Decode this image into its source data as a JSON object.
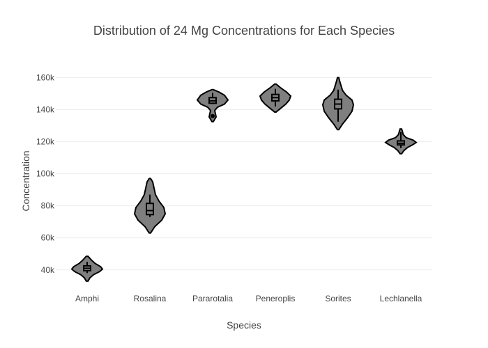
{
  "chart_data": {
    "type": "violin",
    "title": "Distribution of 24  Mg  Concentrations for Each Species",
    "xlabel": "Species",
    "ylabel": "Concentration",
    "ylim": [
      26000,
      165000
    ],
    "yticks": [
      40000,
      60000,
      80000,
      100000,
      120000,
      140000,
      160000
    ],
    "ytick_labels": [
      "40k",
      "60k",
      "80k",
      "100k",
      "120k",
      "140k",
      "160k"
    ],
    "grid": true,
    "fill_color": "#7f7f7f",
    "line_color": "#000000",
    "categories": [
      "Amphi",
      "Rosalina",
      "Pararotalia",
      "Peneroplis",
      "Sorites",
      "Lechlanella"
    ],
    "series": [
      {
        "category": "Amphi",
        "min": 33000,
        "max": 48500,
        "q1": 39500,
        "median": 41000,
        "q3": 42500,
        "whisker_low": 38000,
        "whisker_high": 45000,
        "profile": [
          [
            33000,
            1
          ],
          [
            35000,
            3
          ],
          [
            37000,
            7
          ],
          [
            39000,
            14
          ],
          [
            40500,
            17
          ],
          [
            42000,
            15
          ],
          [
            44000,
            9
          ],
          [
            46000,
            5
          ],
          [
            48500,
            1
          ]
        ]
      },
      {
        "category": "Rosalina",
        "min": 63000,
        "max": 97000,
        "q1": 74500,
        "median": 77000,
        "q3": 81500,
        "whisker_low": 73000,
        "whisker_high": 87000,
        "profile": [
          [
            63000,
            1
          ],
          [
            67000,
            7
          ],
          [
            71000,
            17
          ],
          [
            75000,
            22
          ],
          [
            79000,
            20
          ],
          [
            83000,
            13
          ],
          [
            87000,
            8
          ],
          [
            91000,
            6
          ],
          [
            95000,
            4
          ],
          [
            97000,
            1
          ]
        ]
      },
      {
        "category": "Pararotalia",
        "min": 132500,
        "max": 152500,
        "q1": 144000,
        "median": 145500,
        "q3": 147500,
        "whisker_low": 143500,
        "whisker_high": 150500,
        "outliers": [
          136000
        ],
        "profile": [
          [
            132500,
            1
          ],
          [
            134000,
            3
          ],
          [
            135500,
            5
          ],
          [
            137500,
            4
          ],
          [
            139500,
            3
          ],
          [
            141500,
            7
          ],
          [
            143500,
            17
          ],
          [
            146000,
            22
          ],
          [
            149000,
            17
          ],
          [
            151000,
            9
          ],
          [
            152500,
            1
          ]
        ]
      },
      {
        "category": "Peneroplis",
        "min": 138500,
        "max": 156000,
        "q1": 145500,
        "median": 147500,
        "q3": 149500,
        "whisker_low": 142000,
        "whisker_high": 153000,
        "profile": [
          [
            138500,
            1
          ],
          [
            141000,
            8
          ],
          [
            143500,
            15
          ],
          [
            146000,
            20
          ],
          [
            148500,
            22
          ],
          [
            151000,
            16
          ],
          [
            153500,
            8
          ],
          [
            156000,
            1
          ]
        ]
      },
      {
        "category": "Sorites",
        "min": 127500,
        "max": 160000,
        "q1": 140500,
        "median": 143500,
        "q3": 146500,
        "whisker_low": 132500,
        "whisker_high": 152500,
        "profile": [
          [
            127500,
            1
          ],
          [
            131000,
            6
          ],
          [
            135000,
            13
          ],
          [
            139000,
            19
          ],
          [
            143000,
            21
          ],
          [
            146000,
            19
          ],
          [
            149000,
            11
          ],
          [
            152000,
            6
          ],
          [
            155000,
            4
          ],
          [
            158000,
            2
          ],
          [
            160000,
            1
          ]
        ]
      },
      {
        "category": "Lechlanella",
        "min": 112500,
        "max": 128000,
        "q1": 118000,
        "median": 119000,
        "q3": 120500,
        "whisker_low": 116000,
        "whisker_high": 126000,
        "profile": [
          [
            112500,
            1
          ],
          [
            114500,
            4
          ],
          [
            116500,
            9
          ],
          [
            118000,
            15
          ],
          [
            119500,
            20
          ],
          [
            121000,
            16
          ],
          [
            122500,
            7
          ],
          [
            124500,
            3
          ],
          [
            126500,
            2
          ],
          [
            128000,
            1
          ]
        ]
      }
    ]
  }
}
